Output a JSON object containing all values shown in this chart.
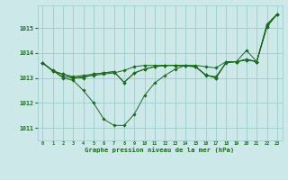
{
  "title": "Graphe pression niveau de la mer (hPa)",
  "bg_color": "#cce8e8",
  "grid_color": "#99cccc",
  "line_color": "#1a6b1a",
  "xlim": [
    -0.5,
    23.5
  ],
  "ylim": [
    1010.5,
    1015.9
  ],
  "yticks": [
    1011,
    1012,
    1013,
    1014,
    1015
  ],
  "xtick_labels": [
    "0",
    "1",
    "2",
    "3",
    "4",
    "5",
    "6",
    "7",
    "8",
    "9",
    "10",
    "11",
    "12",
    "13",
    "14",
    "15",
    "16",
    "17",
    "18",
    "19",
    "20",
    "21",
    "22",
    "23"
  ],
  "series": [
    [
      1013.6,
      1013.3,
      1013.0,
      1012.9,
      1012.5,
      1012.0,
      1011.35,
      1011.1,
      1011.1,
      1011.55,
      1012.3,
      1012.8,
      1013.1,
      1013.35,
      1013.5,
      1013.45,
      1013.1,
      1013.05,
      1013.6,
      1013.65,
      1014.1,
      1013.65,
      1015.15,
      1015.55
    ],
    [
      1013.6,
      1013.3,
      1013.05,
      1013.0,
      1013.05,
      1013.1,
      1013.15,
      1013.2,
      1013.3,
      1013.45,
      1013.5,
      1013.5,
      1013.5,
      1013.5,
      1013.5,
      1013.5,
      1013.45,
      1013.4,
      1013.65,
      1013.65,
      1013.75,
      1013.65,
      1015.1,
      1015.55
    ],
    [
      1013.6,
      1013.28,
      1013.15,
      1013.05,
      1013.1,
      1013.15,
      1013.2,
      1013.25,
      1012.82,
      1013.2,
      1013.35,
      1013.45,
      1013.5,
      1013.5,
      1013.48,
      1013.45,
      1013.12,
      1013.0,
      1013.62,
      1013.65,
      1013.72,
      1013.65,
      1015.05,
      1015.55
    ],
    [
      1013.6,
      1013.28,
      1013.15,
      1013.0,
      1013.0,
      1013.15,
      1013.2,
      1013.25,
      1012.82,
      1013.2,
      1013.35,
      1013.45,
      1013.5,
      1013.5,
      1013.48,
      1013.45,
      1013.12,
      1013.0,
      1013.62,
      1013.65,
      1013.72,
      1013.65,
      1015.05,
      1015.55
    ]
  ]
}
